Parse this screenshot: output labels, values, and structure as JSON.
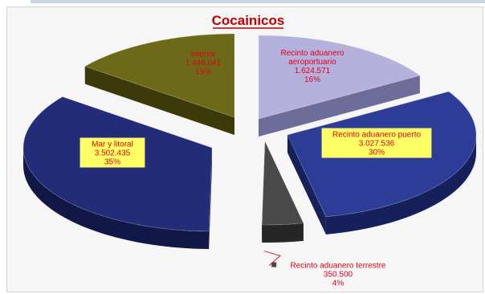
{
  "chart_data": {
    "type": "pie",
    "title": "Cocainicos",
    "slices": [
      {
        "lines": [
          "Recinto aduanero",
          "aeroportuario",
          "1.624.571",
          "16%"
        ],
        "value": 1624571,
        "percent": 16,
        "color": "#b4b2dd",
        "side": "#6e6c99"
      },
      {
        "lines": [
          "Recinto aduanero puerto",
          "3.027.536",
          "30%"
        ],
        "value": 3027536,
        "percent": 30,
        "color": "#2d3c96",
        "side": "#16205a"
      },
      {
        "lines": [
          "Recinto aduanero terrestre",
          "350.500",
          "4%"
        ],
        "value": 350500,
        "percent": 4,
        "color": "#494949",
        "side": "#262626"
      },
      {
        "lines": [
          "Mar y litoral",
          "3.502.435",
          "35%"
        ],
        "value": 3502435,
        "percent": 35,
        "color": "#232c78",
        "side": "#111746"
      },
      {
        "lines": [
          "Interior",
          "1.449.041",
          "15%"
        ],
        "value": 1449041,
        "percent": 15,
        "color": "#6c6a18",
        "side": "#3c3a08"
      }
    ]
  }
}
